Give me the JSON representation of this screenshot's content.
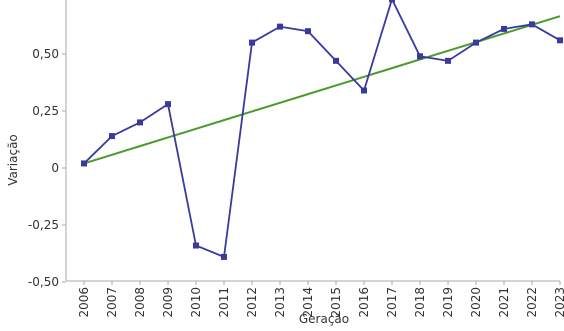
{
  "chart_data": {
    "type": "line",
    "x": [
      "2006",
      "2007",
      "2008",
      "2009",
      "2010",
      "2011",
      "2012",
      "2013",
      "2014",
      "2015",
      "2016",
      "2017",
      "2018",
      "2019",
      "2020",
      "2021",
      "2022",
      "2023"
    ],
    "series": [
      {
        "values": [
          0.02,
          0.14,
          0.2,
          0.28,
          -0.34,
          -0.39,
          0.55,
          0.62,
          0.6,
          0.47,
          0.34,
          0.74,
          0.49,
          0.47,
          0.55,
          0.61,
          0.63,
          0.56
        ],
        "color": "#3a3a9e",
        "marker": "square"
      },
      {
        "values": [
          0.02,
          0.058,
          0.096,
          0.134,
          0.172,
          0.21,
          0.248,
          0.286,
          0.324,
          0.362,
          0.4,
          0.438,
          0.476,
          0.514,
          0.552,
          0.59,
          0.628,
          0.666
        ],
        "color": "#4a9a2e",
        "style": "trendline"
      }
    ],
    "xlabel": "Geração",
    "ylabel": "Variação",
    "yticks": [
      {
        "value": 0.5,
        "label": "0,50"
      },
      {
        "value": 0.25,
        "label": "0,25"
      },
      {
        "value": 0,
        "label": "0"
      },
      {
        "value": -0.25,
        "label": "-0,25"
      },
      {
        "value": -0.5,
        "label": "-0,50"
      }
    ],
    "ylim": [
      -0.5,
      0.75
    ],
    "grid": false,
    "legend": "none"
  }
}
